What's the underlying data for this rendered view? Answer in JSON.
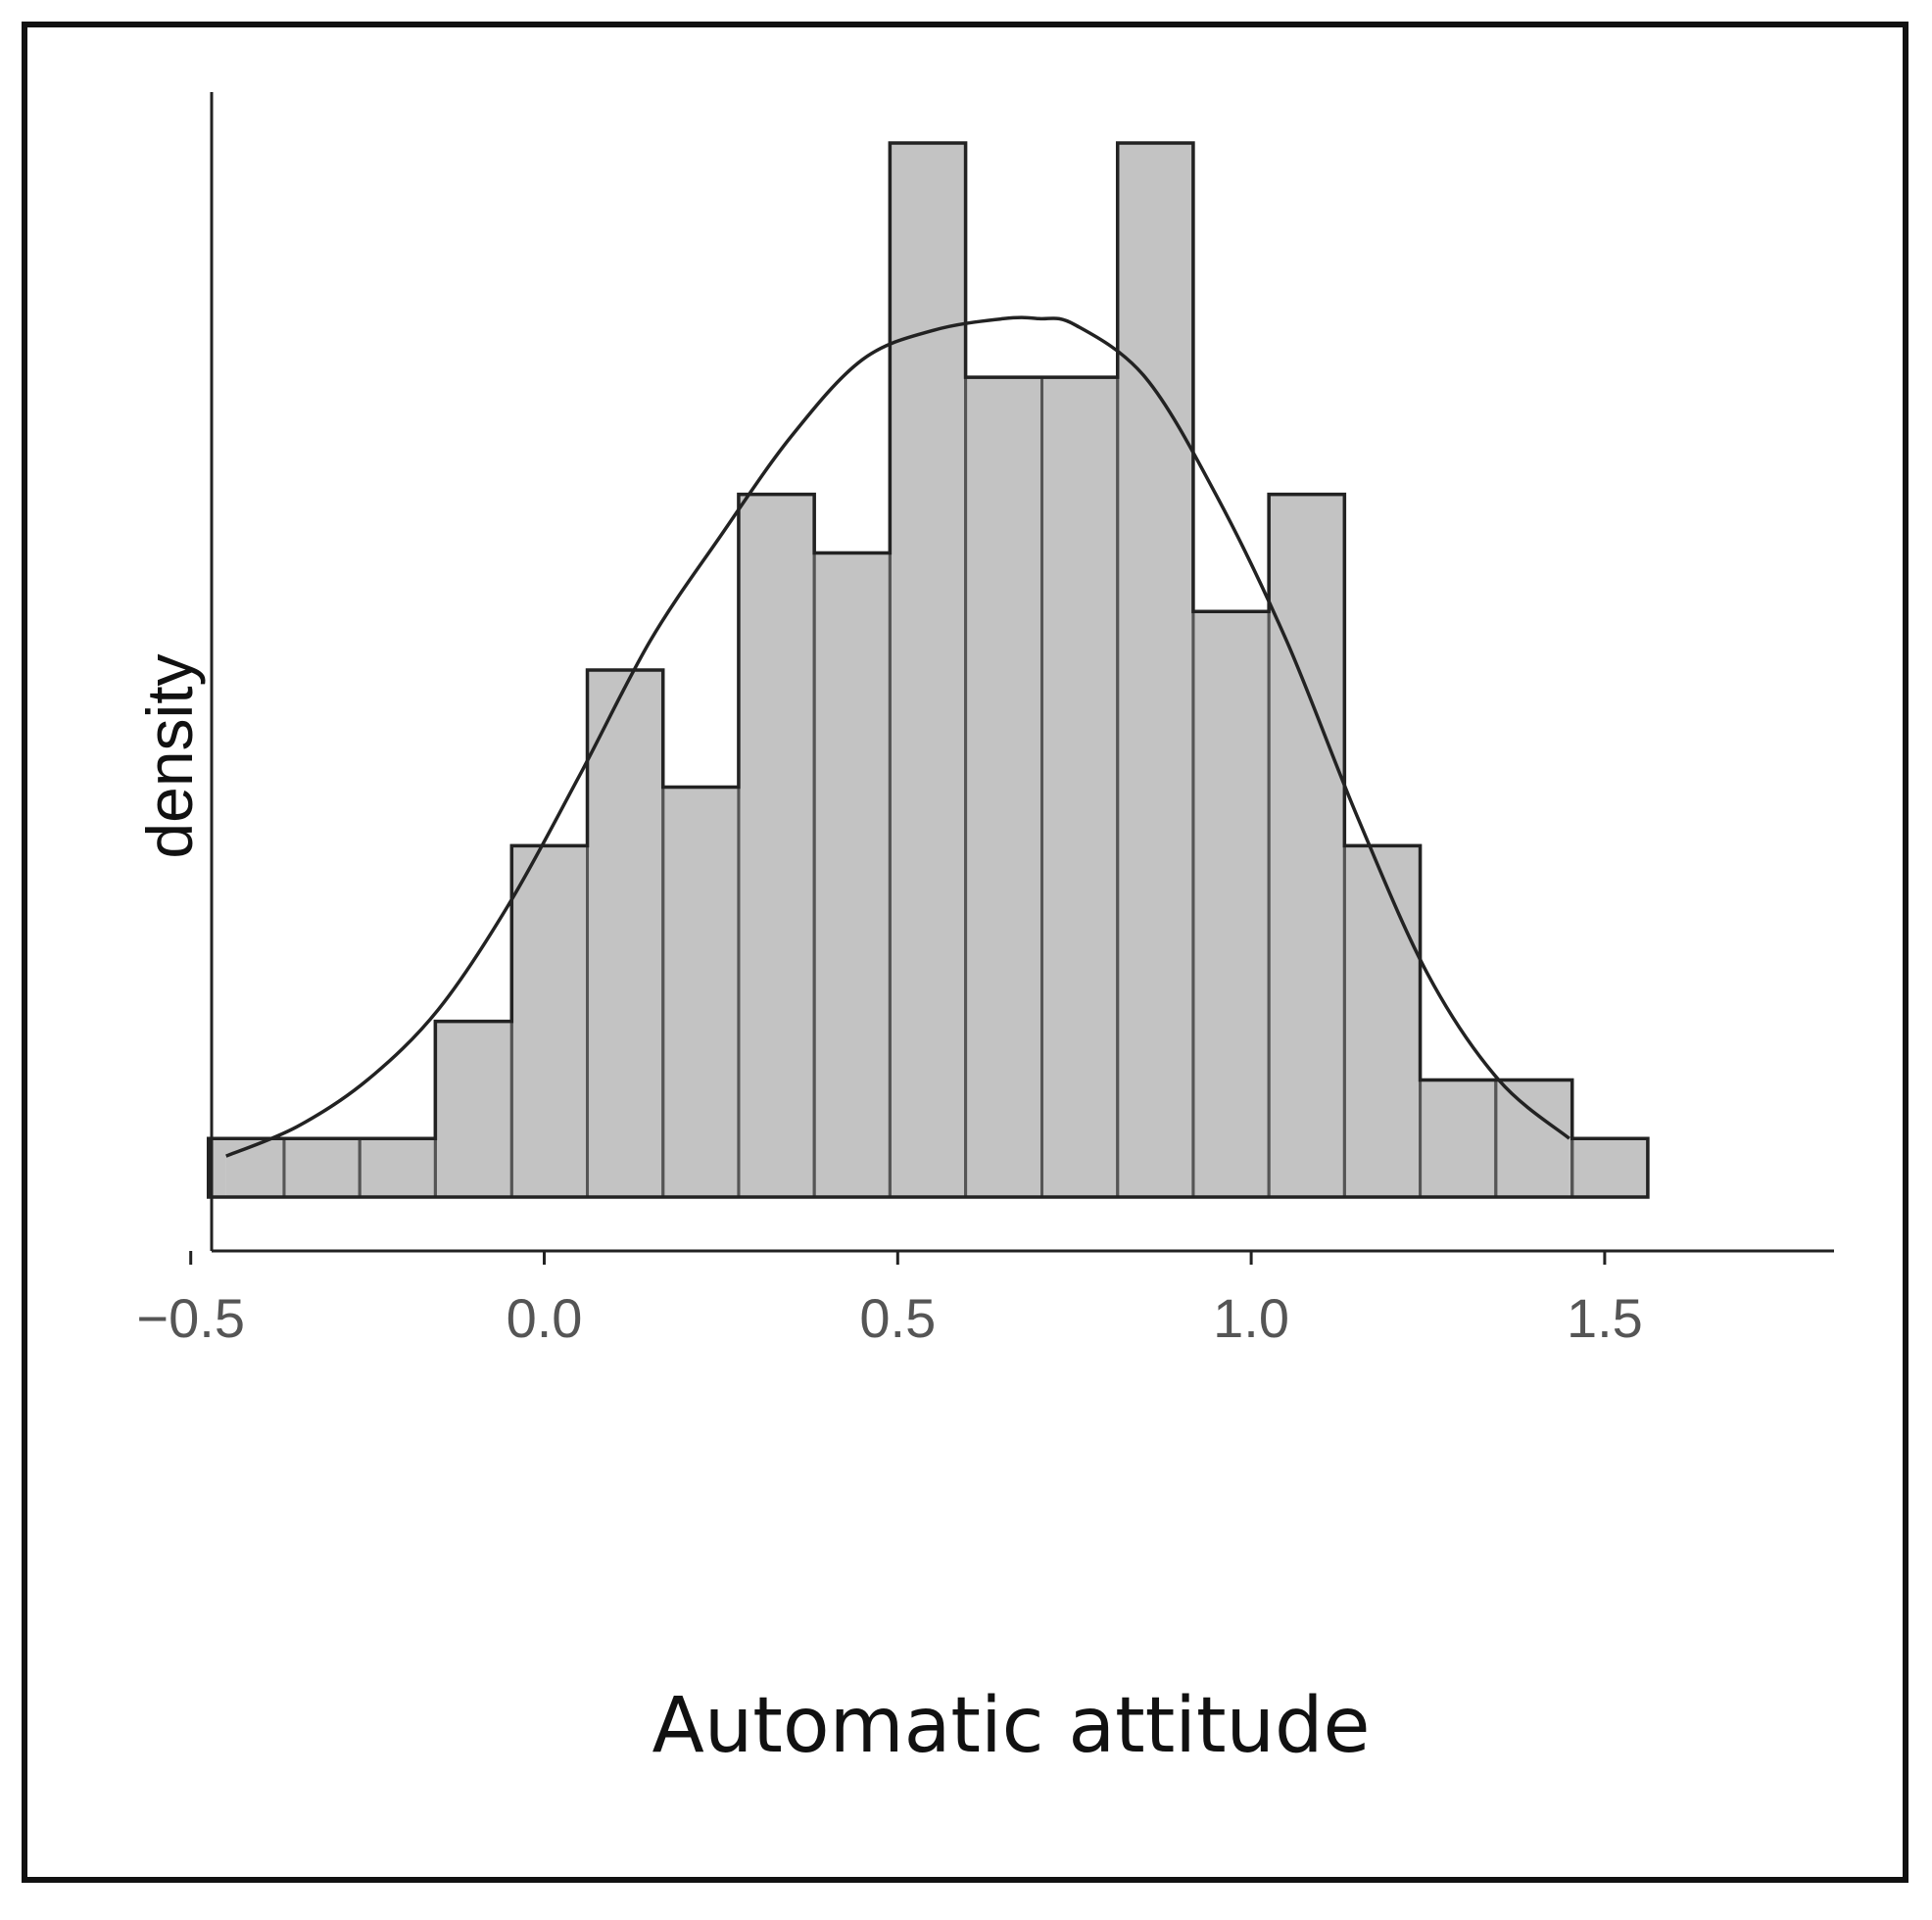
{
  "chart_data": {
    "type": "bar",
    "subtype": "histogram-with-density",
    "xlabel": "Automatic attitude",
    "ylabel": "density",
    "xlim": [
      -0.6,
      1.65
    ],
    "x_ticks": [
      -0.5,
      0.0,
      0.5,
      1.0,
      1.5
    ],
    "x_tick_labels": [
      "−0.5",
      "0.0",
      "0.5",
      "1.0",
      "1.5"
    ],
    "y_ticks_shown": false,
    "grid": false,
    "bins": {
      "width": 0.1071,
      "edges": [
        -0.475,
        -0.368,
        -0.261,
        -0.154,
        -0.046,
        0.061,
        0.168,
        0.275,
        0.382,
        0.489,
        0.596,
        0.704,
        0.811,
        0.918,
        1.025,
        1.132,
        1.239,
        1.346,
        1.454,
        1.561
      ],
      "counts": [
        1,
        1,
        1,
        3,
        6,
        9,
        7,
        12,
        11,
        18,
        14,
        14,
        18,
        10,
        12,
        6,
        2,
        2,
        1
      ]
    },
    "density_curve": {
      "x": [
        -0.45,
        -0.35,
        -0.25,
        -0.15,
        -0.05,
        0.05,
        0.15,
        0.25,
        0.35,
        0.45,
        0.55,
        0.65,
        0.7,
        0.75,
        0.85,
        0.95,
        1.05,
        1.15,
        1.25,
        1.35,
        1.45
      ],
      "y": [
        0.7,
        1.2,
        2.0,
        3.2,
        5.0,
        7.2,
        9.5,
        11.3,
        13.0,
        14.3,
        14.8,
        15.0,
        15.0,
        14.9,
        14.0,
        12.0,
        9.5,
        6.5,
        3.8,
        2.0,
        1.0
      ]
    },
    "colors": {
      "bar_fill": "#c3c3c3",
      "bar_stroke": "#555555",
      "overlay_fill": "#e6e6e6",
      "curve": "#222222",
      "axis": "#222222"
    }
  }
}
